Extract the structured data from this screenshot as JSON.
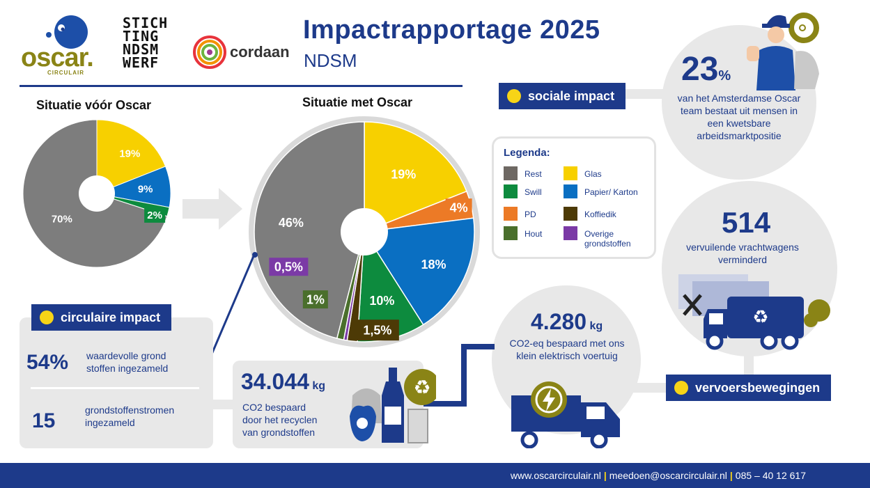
{
  "header": {
    "title": "Impactrapportage 2025",
    "subtitle": "NDSM",
    "logos": {
      "oscar": "oscar.",
      "oscar_sub": "CIRCULAIR",
      "stichting": [
        "STICH",
        "TING",
        "NDSM",
        "WERF"
      ],
      "cordaan": "cordaan"
    }
  },
  "chart_data": [
    {
      "type": "pie",
      "title": "Situatie vóór Oscar",
      "slices": [
        {
          "label": "19%",
          "category": "Glas",
          "value": 19,
          "color": "#f7d000"
        },
        {
          "label": "9%",
          "category": "Papier/ Karton",
          "value": 9,
          "color": "#0a6fc2"
        },
        {
          "label": "2%",
          "category": "Swill",
          "value": 2,
          "color": "#0d8b3e"
        },
        {
          "label": "70%",
          "category": "Rest",
          "value": 70,
          "color": "#7d7d7d"
        }
      ]
    },
    {
      "type": "pie",
      "title": "Situatie met Oscar",
      "slices": [
        {
          "label": "19%",
          "category": "Glas",
          "value": 19,
          "color": "#f7d000"
        },
        {
          "label": "4%",
          "category": "PD",
          "value": 4,
          "color": "#ec7a26"
        },
        {
          "label": "18%",
          "category": "Papier/ Karton",
          "value": 18,
          "color": "#0a6fc2"
        },
        {
          "label": "10%",
          "category": "Swill",
          "value": 10,
          "color": "#0d8b3e"
        },
        {
          "label": "1,5%",
          "category": "Koffiedik",
          "value": 1.5,
          "color": "#4d3a06"
        },
        {
          "label": "0,5%",
          "category": "Overige grondstoffen",
          "value": 0.5,
          "color": "#7b3aa6"
        },
        {
          "label": "1%",
          "category": "Hout",
          "value": 1,
          "color": "#4a6f2c"
        },
        {
          "label": "46%",
          "category": "Rest",
          "value": 46,
          "color": "#7d7d7d"
        }
      ]
    }
  ],
  "legend": {
    "title": "Legenda:",
    "items": [
      {
        "label": "Rest",
        "color": "#6e6863"
      },
      {
        "label": "Glas",
        "color": "#f7d000"
      },
      {
        "label": "Swill",
        "color": "#0d8b3e"
      },
      {
        "label": "Papier/ Karton",
        "color": "#0a6fc2"
      },
      {
        "label": "PD",
        "color": "#ec7a26"
      },
      {
        "label": "Koffiedik",
        "color": "#4d3a06"
      },
      {
        "label": "Hout",
        "color": "#4a6f2c"
      },
      {
        "label": "Overige grondstoffen",
        "color": "#7b3aa6"
      }
    ]
  },
  "circulair": {
    "tag": "circulaire impact",
    "stat1_value": "54%",
    "stat1_desc": "waardevolle grond stoffen ingezameld",
    "stat2_value": "15",
    "stat2_desc": "grondstoffenstromen ingezameld"
  },
  "recycling": {
    "value": "34.044",
    "unit": "kg",
    "desc": "CO2 bespaard door het recyclen van grondstoffen"
  },
  "sociaal": {
    "tag": "sociale impact",
    "value": "23",
    "unit": "%",
    "desc": "van het Amsterdamse Oscar team bestaat uit mensen in een kwetsbare arbeidsmarktpositie"
  },
  "vervoer": {
    "tag": "vervoersbewegingen",
    "trucks_value": "514",
    "trucks_desc": "vervuilende vrachtwagens verminderd",
    "co2_value": "4.280",
    "co2_unit": "kg",
    "co2_desc": "CO2-eq bespaard met ons klein elektrisch voertuig"
  },
  "footer": {
    "website": "www.oscarcirculair.nl",
    "email": "meedoen@oscarcirculair.nl",
    "phone": "085 – 40 12 617"
  },
  "colors": {
    "navy": "#1d3a8a",
    "yellow": "#f7d417",
    "olive": "#8a8416",
    "panel": "#e8e8e8"
  }
}
